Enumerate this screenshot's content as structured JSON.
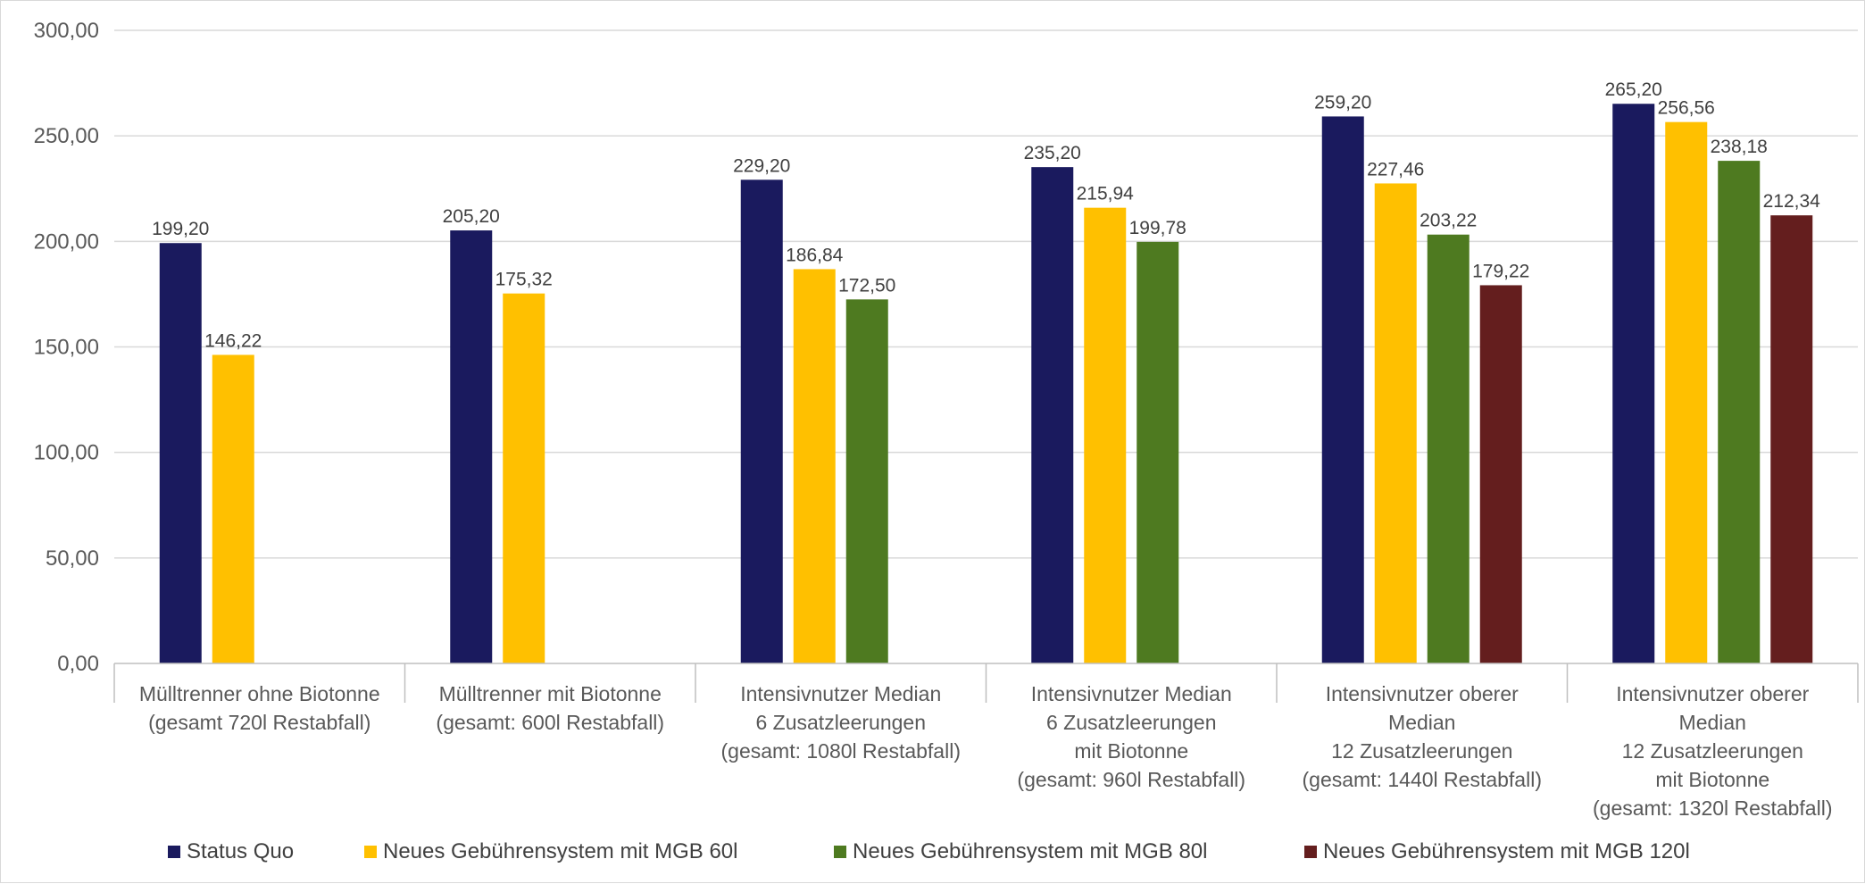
{
  "chart_data": {
    "type": "bar",
    "title": "",
    "xlabel": "",
    "ylabel": "",
    "ylim": [
      0,
      300
    ],
    "y_ticks": [
      "0,00",
      "50,00",
      "100,00",
      "150,00",
      "200,00",
      "250,00",
      "300,00"
    ],
    "grid": true,
    "legend_position": "bottom",
    "categories": [
      [
        "Mülltrenner ohne Biotonne",
        "(gesamt 720l Restabfall)"
      ],
      [
        "Mülltrenner mit Biotonne",
        "(gesamt: 600l Restabfall)"
      ],
      [
        "Intensivnutzer Median",
        "6 Zusatzleerungen",
        "(gesamt: 1080l Restabfall)"
      ],
      [
        "Intensivnutzer Median",
        "6 Zusatzleerungen",
        "mit Biotonne",
        "(gesamt: 960l Restabfall)"
      ],
      [
        "Intensivnutzer oberer",
        "Median",
        "12 Zusatzleerungen",
        "(gesamt: 1440l Restabfall)"
      ],
      [
        "Intensivnutzer oberer",
        "Median",
        "12 Zusatzleerungen",
        "mit Biotonne",
        "(gesamt: 1320l Restabfall)"
      ]
    ],
    "series": [
      {
        "name": "Status Quo",
        "color": "#1a1a5e",
        "values": [
          199.2,
          205.2,
          229.2,
          235.2,
          259.2,
          265.2
        ],
        "labels": [
          "199,20",
          "205,20",
          "229,20",
          "235,20",
          "259,20",
          "265,20"
        ]
      },
      {
        "name": "Neues Gebührensystem mit MGB 60l",
        "color": "#ffc000",
        "values": [
          146.22,
          175.32,
          186.84,
          215.94,
          227.46,
          256.56
        ],
        "labels": [
          "146,22",
          "175,32",
          "186,84",
          "215,94",
          "227,46",
          "256,56"
        ]
      },
      {
        "name": "Neues Gebührensystem mit MGB 80l",
        "color": "#4e7a20",
        "values": [
          null,
          null,
          172.5,
          199.78,
          203.22,
          238.18
        ],
        "labels": [
          null,
          null,
          "172,50",
          "199,78",
          "203,22",
          "238,18"
        ]
      },
      {
        "name": "Neues Gebührensystem mit MGB 120l",
        "color": "#641e1e",
        "values": [
          null,
          null,
          null,
          null,
          179.22,
          212.34
        ],
        "labels": [
          null,
          null,
          null,
          null,
          "179,22",
          "212,34"
        ]
      }
    ]
  }
}
